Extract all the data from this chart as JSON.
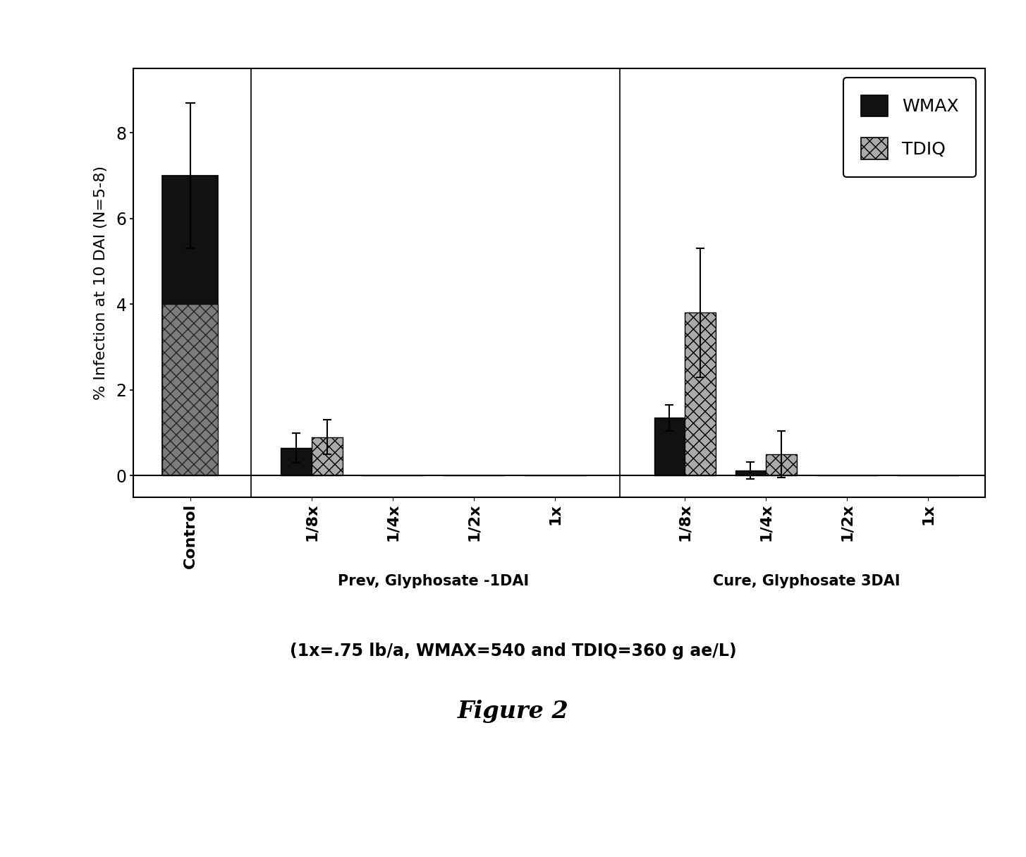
{
  "title": "Figure 2",
  "ylabel": "% Infection at 10 DAI (N=5-8)",
  "xlabel": "(1x=.75 lb/a, WMAX=540 and TDIQ=360 g ae/L)",
  "ylim": [
    -0.5,
    9.5
  ],
  "yticks": [
    0,
    2,
    4,
    6,
    8
  ],
  "group_labels": [
    "Control",
    "1/8x",
    "1/4x",
    "1/2x",
    "1x",
    "1/8x",
    "1/4x",
    "1/2x",
    "1x"
  ],
  "section_labels": [
    "Prev, Glyphosate -1DAI",
    "Cure, Glyphosate 3DAI"
  ],
  "wmax_values": [
    7.0,
    0.65,
    0.0,
    0.0,
    0.0,
    1.35,
    0.12,
    0.0,
    0.0
  ],
  "tdiq_values": [
    4.0,
    0.9,
    0.0,
    0.0,
    0.0,
    3.8,
    0.5,
    0.0,
    0.0
  ],
  "wmax_errors": [
    1.7,
    0.35,
    0.0,
    0.0,
    0.0,
    0.3,
    0.2,
    0.0,
    0.0
  ],
  "tdiq_errors": [
    0.0,
    0.4,
    0.0,
    0.0,
    0.0,
    1.5,
    0.55,
    0.0,
    0.0
  ],
  "wmax_color": "#111111",
  "tdiq_color": "#aaaaaa",
  "tdiq_hatch": "xx",
  "bar_width": 0.38,
  "background_color": "#ffffff",
  "legend_labels": [
    "WMAX",
    "TDIQ"
  ],
  "control_overlap": true
}
